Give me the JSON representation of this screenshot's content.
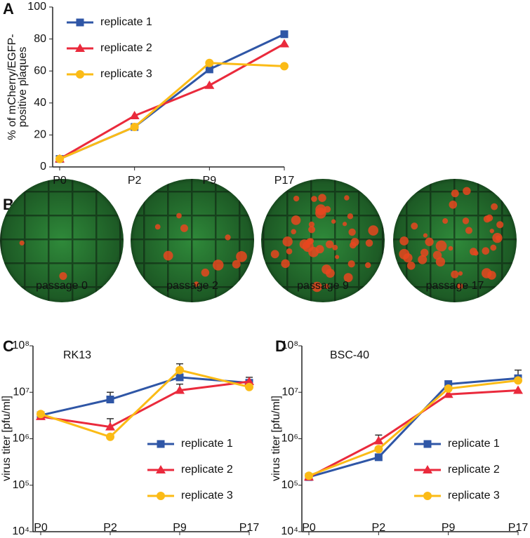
{
  "chart_data": [
    {
      "panel": "A",
      "type": "line",
      "categories": [
        "P0",
        "P2",
        "P9",
        "P17"
      ],
      "ylabel": [
        "% of mCherry/EGFP-",
        "positive  plaques"
      ],
      "ylim": [
        0,
        100
      ],
      "yticks": [
        0,
        20,
        40,
        60,
        80,
        100
      ],
      "log": false,
      "legend": "upper left",
      "series": [
        {
          "name": "replicate 1",
          "color": "#2f56a6",
          "marker": "square",
          "values": [
            5,
            25,
            61,
            83
          ]
        },
        {
          "name": "replicate 2",
          "color": "#ea2a3c",
          "marker": "triangle",
          "values": [
            5,
            32,
            51,
            77
          ]
        },
        {
          "name": "replicate 3",
          "color": "#fbbb16",
          "marker": "circle",
          "values": [
            5,
            25,
            65,
            63
          ]
        }
      ]
    },
    {
      "panel": "C",
      "type": "line",
      "title": "RK13",
      "categories": [
        "P0",
        "P2",
        "P9",
        "P17"
      ],
      "ylabel": "virus titer [pfu/ml]",
      "ylim": [
        10000,
        100000000
      ],
      "log": true,
      "legend": "lower right",
      "yticks": [
        {
          "value": 10000,
          "label": "10⁴"
        },
        {
          "value": 100000,
          "label": "10⁵"
        },
        {
          "value": 1000000,
          "label": "10⁶"
        },
        {
          "value": 10000000,
          "label": "10⁷"
        },
        {
          "value": 100000000,
          "label": "10⁸"
        }
      ],
      "series": [
        {
          "name": "replicate 1",
          "color": "#2f56a6",
          "marker": "square",
          "values": [
            3200000,
            7000000,
            21000000,
            16000000
          ],
          "errors": [
            null,
            3000000,
            20000000,
            5000000
          ]
        },
        {
          "name": "replicate 2",
          "color": "#ea2a3c",
          "marker": "triangle",
          "values": [
            3000000,
            1800000,
            11000000,
            17000000
          ],
          "errors": [
            null,
            900000,
            4000000,
            null
          ]
        },
        {
          "name": "replicate 3",
          "color": "#fbbb16",
          "marker": "circle",
          "values": [
            3400000,
            1100000,
            30000000,
            13000000
          ],
          "errors": [
            null,
            null,
            null,
            null
          ]
        }
      ]
    },
    {
      "panel": "D",
      "type": "line",
      "title": "BSC-40",
      "categories": [
        "P0",
        "P2",
        "P9",
        "P17"
      ],
      "ylabel": "virus titer [pfu/ml]",
      "ylim": [
        10000,
        100000000
      ],
      "log": true,
      "legend": "lower right",
      "yticks": [
        {
          "value": 10000,
          "label": "10⁴"
        },
        {
          "value": 100000,
          "label": "10⁵"
        },
        {
          "value": 1000000,
          "label": "10⁶"
        },
        {
          "value": 10000000,
          "label": "10⁷"
        },
        {
          "value": 100000000,
          "label": "10⁸"
        }
      ],
      "series": [
        {
          "name": "replicate 1",
          "color": "#2f56a6",
          "marker": "square",
          "values": [
            150000,
            400000,
            15000000,
            20000000
          ],
          "errors": [
            null,
            null,
            null,
            10000000
          ]
        },
        {
          "name": "replicate 2",
          "color": "#ea2a3c",
          "marker": "triangle",
          "values": [
            150000,
            900000,
            9000000,
            11000000
          ],
          "errors": [
            null,
            300000,
            null,
            null
          ]
        },
        {
          "name": "replicate 3",
          "color": "#fbbb16",
          "marker": "circle",
          "values": [
            160000,
            600000,
            12000000,
            18000000
          ],
          "errors": [
            null,
            null,
            null,
            null
          ]
        }
      ]
    }
  ],
  "panel_b": {
    "panel": "B",
    "captions": [
      "passage 0",
      "passage 2",
      "passage 9",
      "passage 17"
    ]
  }
}
